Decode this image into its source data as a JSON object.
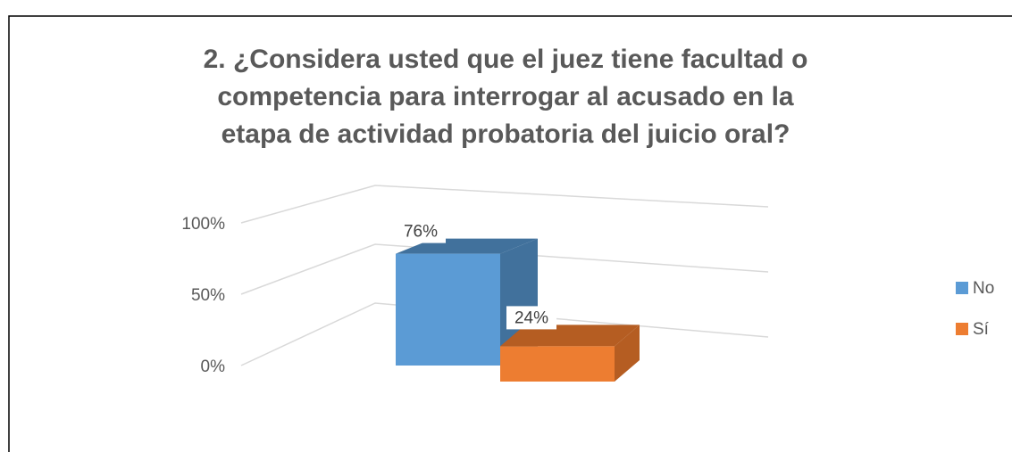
{
  "chart_data": {
    "type": "bar3d",
    "title": "2. ¿Considera usted que el juez tiene facultad o competencia para interrogar al acusado en la etapa de actividad probatoria del juicio oral?",
    "series": [
      {
        "name": "No",
        "color": "#5b9bd5",
        "shade": "#41719c",
        "values": [
          76
        ],
        "value_labels": [
          "76%"
        ]
      },
      {
        "name": "Sí",
        "color": "#ed7d31",
        "shade": "#b55d22",
        "values": [
          24
        ],
        "value_labels": [
          "24%"
        ]
      }
    ],
    "ylim": [
      0,
      100
    ],
    "yticks": [
      {
        "value": 0,
        "label": "0%"
      },
      {
        "value": 50,
        "label": "50%"
      },
      {
        "value": 100,
        "label": "100%"
      }
    ],
    "grid": true,
    "legend": "right"
  }
}
